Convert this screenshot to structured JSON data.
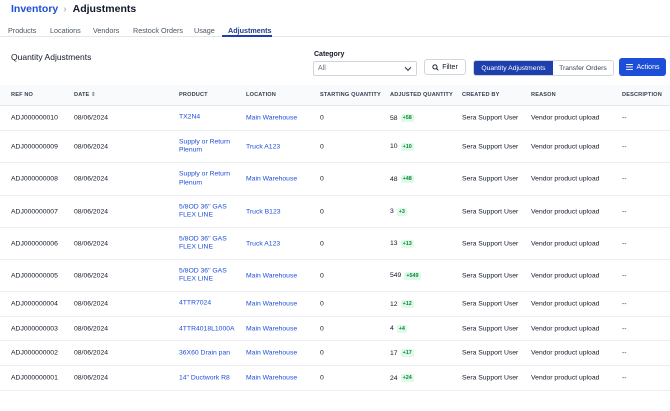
{
  "breadcrumb": {
    "parent": "Inventory",
    "current": "Adjustments"
  },
  "tabs": [
    {
      "label": "Products",
      "active": false
    },
    {
      "label": "Locations",
      "active": false
    },
    {
      "label": "Vendors",
      "active": false
    },
    {
      "label": "Restock Orders",
      "active": false
    },
    {
      "label": "Usage",
      "active": false
    },
    {
      "label": "Adjustments",
      "active": true
    }
  ],
  "section_title": "Quantity Adjustments",
  "category": {
    "label": "Category",
    "value": "All"
  },
  "toolbar": {
    "filter_label": "Filter",
    "toggle_active": "Quantity Adjustments",
    "toggle_inactive": "Transfer Orders",
    "actions_label": "Actions"
  },
  "colors": {
    "primary": "#1e40af",
    "link": "#1d4ed8",
    "delta_bg": "#dcfce7",
    "delta_text": "#15803d"
  },
  "table": {
    "headers": {
      "ref": "REF NO",
      "date": "DATE",
      "product": "PRODUCT",
      "location": "LOCATION",
      "starting": "STARTING QUANTITY",
      "adjusted": "ADJUSTED QUANTITY",
      "created_by": "CREATED BY",
      "reason": "REASON",
      "description": "DESCRIPTION"
    },
    "rows": [
      {
        "ref": "ADJ000000010",
        "date": "08/06/2024",
        "product": "TX2N4",
        "location": "Main Warehouse",
        "starting": "0",
        "adjusted": "58",
        "delta": "+58",
        "created_by": "Sera Support User",
        "reason": "Vendor product upload",
        "description": "--"
      },
      {
        "ref": "ADJ000000009",
        "date": "08/06/2024",
        "product": "Supply or Return Plenum",
        "location": "Truck A123",
        "starting": "0",
        "adjusted": "10",
        "delta": "+10",
        "created_by": "Sera Support User",
        "reason": "Vendor product upload",
        "description": "--"
      },
      {
        "ref": "ADJ000000008",
        "date": "08/06/2024",
        "product": "Supply or Return Plenum",
        "location": "Main Warehouse",
        "starting": "0",
        "adjusted": "48",
        "delta": "+48",
        "created_by": "Sera Support User",
        "reason": "Vendor product upload",
        "description": "--"
      },
      {
        "ref": "ADJ000000007",
        "date": "08/06/2024",
        "product": "5/8OD 36\" GAS FLEX LINE",
        "location": "Truck B123",
        "starting": "0",
        "adjusted": "3",
        "delta": "+3",
        "created_by": "Sera Support User",
        "reason": "Vendor product upload",
        "description": "--"
      },
      {
        "ref": "ADJ000000006",
        "date": "08/06/2024",
        "product": "5/8OD 36\" GAS FLEX LINE",
        "location": "Truck A123",
        "starting": "0",
        "adjusted": "13",
        "delta": "+13",
        "created_by": "Sera Support User",
        "reason": "Vendor product upload",
        "description": "--"
      },
      {
        "ref": "ADJ000000005",
        "date": "08/06/2024",
        "product": "5/8OD 36\" GAS FLEX LINE",
        "location": "Main Warehouse",
        "starting": "0",
        "adjusted": "549",
        "delta": "+549",
        "created_by": "Sera Support User",
        "reason": "Vendor product upload",
        "description": "--"
      },
      {
        "ref": "ADJ000000004",
        "date": "08/06/2024",
        "product": "4TTR7024",
        "location": "Main Warehouse",
        "starting": "0",
        "adjusted": "12",
        "delta": "+12",
        "created_by": "Sera Support User",
        "reason": "Vendor product upload",
        "description": "--"
      },
      {
        "ref": "ADJ000000003",
        "date": "08/06/2024",
        "product": "4TTR4018L1000A",
        "location": "Main Warehouse",
        "starting": "0",
        "adjusted": "4",
        "delta": "+4",
        "created_by": "Sera Support User",
        "reason": "Vendor product upload",
        "description": "--"
      },
      {
        "ref": "ADJ000000002",
        "date": "08/06/2024",
        "product": "36X60 Drain pan",
        "location": "Main Warehouse",
        "starting": "0",
        "adjusted": "17",
        "delta": "+17",
        "created_by": "Sera Support User",
        "reason": "Vendor product upload",
        "description": "--"
      },
      {
        "ref": "ADJ000000001",
        "date": "08/06/2024",
        "product": "14\" Ductwork R8",
        "location": "Main Warehouse",
        "starting": "0",
        "adjusted": "24",
        "delta": "+24",
        "created_by": "Sera Support User",
        "reason": "Vendor product upload",
        "description": "--"
      }
    ]
  }
}
